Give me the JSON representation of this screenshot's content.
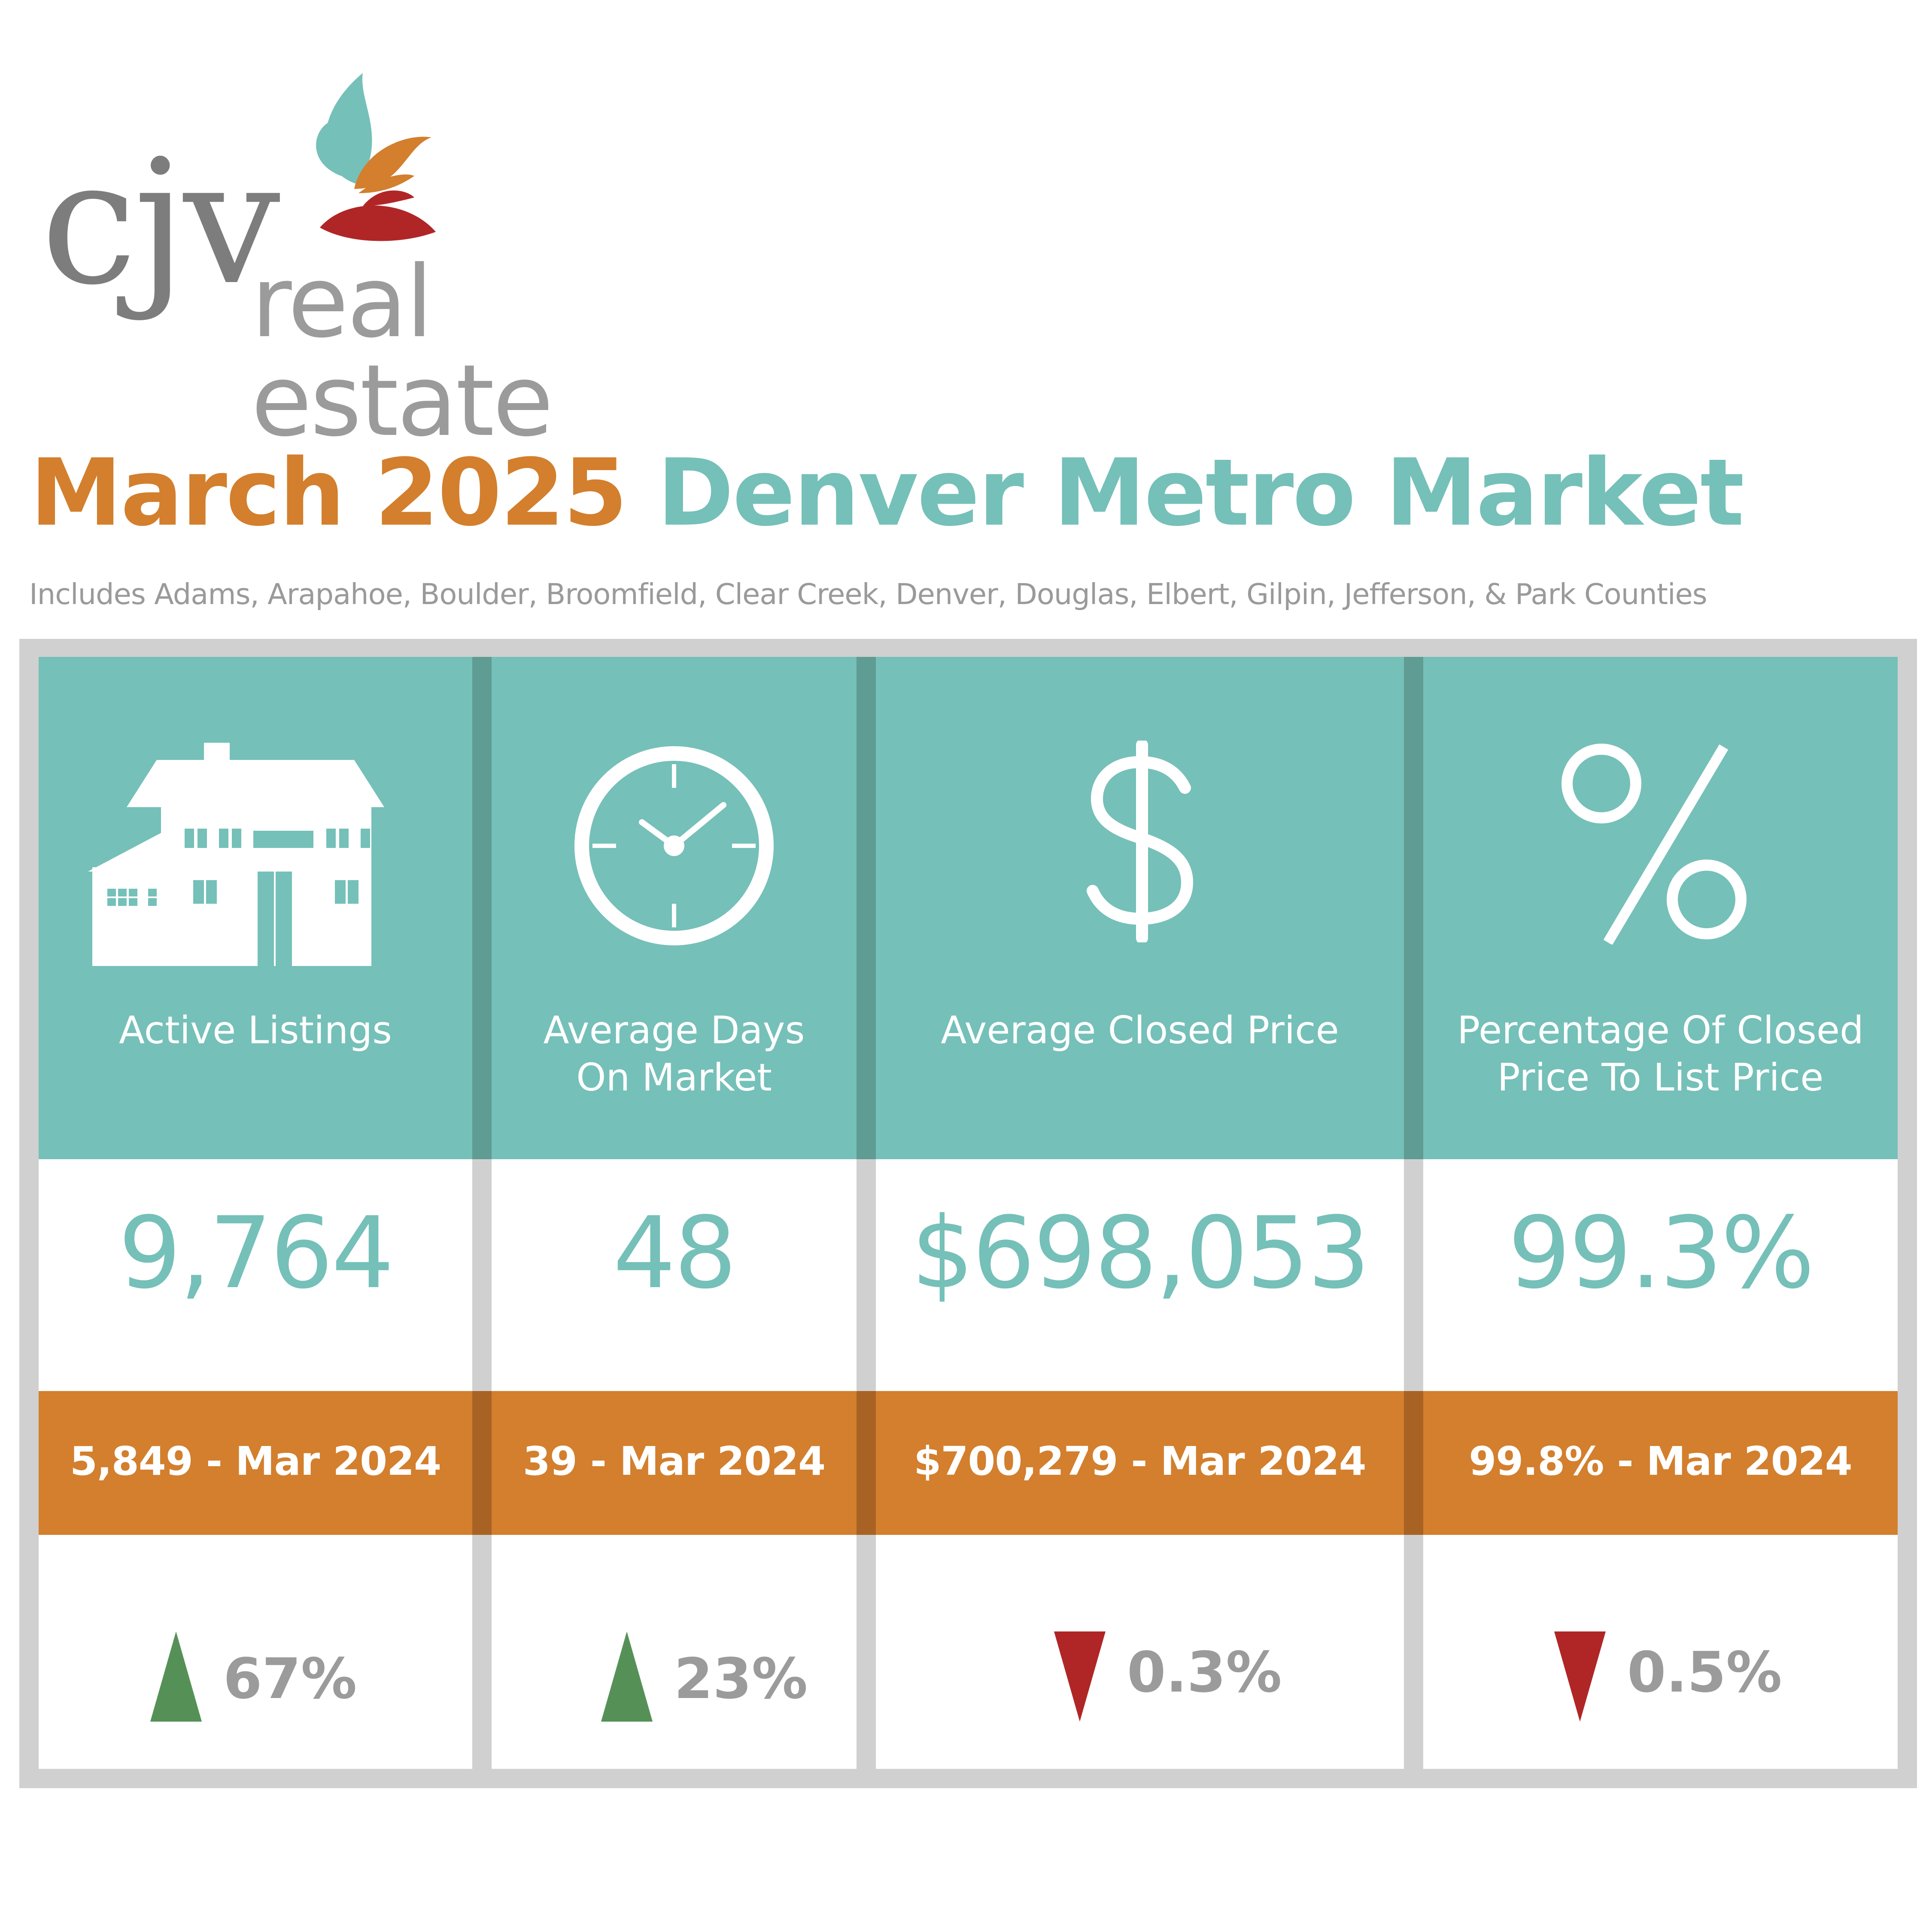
{
  "logo": {
    "brand": "cjv",
    "tagline": "real estate"
  },
  "headline": {
    "date": "March 2025",
    "title": "Denver Metro Market"
  },
  "subtitle": "Includes Adams, Arapahoe, Boulder, Broomfield, Clear Creek, Denver, Douglas, Elbert, Gilpin, Jefferson, & Park Counties",
  "colors": {
    "teal": "#75c0b8",
    "orange": "#d37f2d",
    "grey": "#d0d0d0",
    "up": "#559157",
    "down": "#b02626"
  },
  "metrics": [
    {
      "icon": "house-icon",
      "label_line1": "Active Listings",
      "label_line2": "",
      "value": "9,764",
      "previous": "5,849 - Mar 2024",
      "direction": "up",
      "change": "67%"
    },
    {
      "icon": "clock-icon",
      "label_line1": "Average Days",
      "label_line2": "On Market",
      "value": "48",
      "previous": "39 - Mar 2024",
      "direction": "up",
      "change": "23%"
    },
    {
      "icon": "dollar-icon",
      "label_line1": "Average Closed Price",
      "label_line2": "",
      "value": "$698,053",
      "previous": "$700,279 - Mar 2024",
      "direction": "down",
      "change": "0.3%"
    },
    {
      "icon": "percent-icon",
      "label_line1": "Percentage Of Closed",
      "label_line2": "Price To List Price",
      "value": "99.3%",
      "previous": "99.8% - Mar 2024",
      "direction": "down",
      "change": "0.5%"
    }
  ]
}
